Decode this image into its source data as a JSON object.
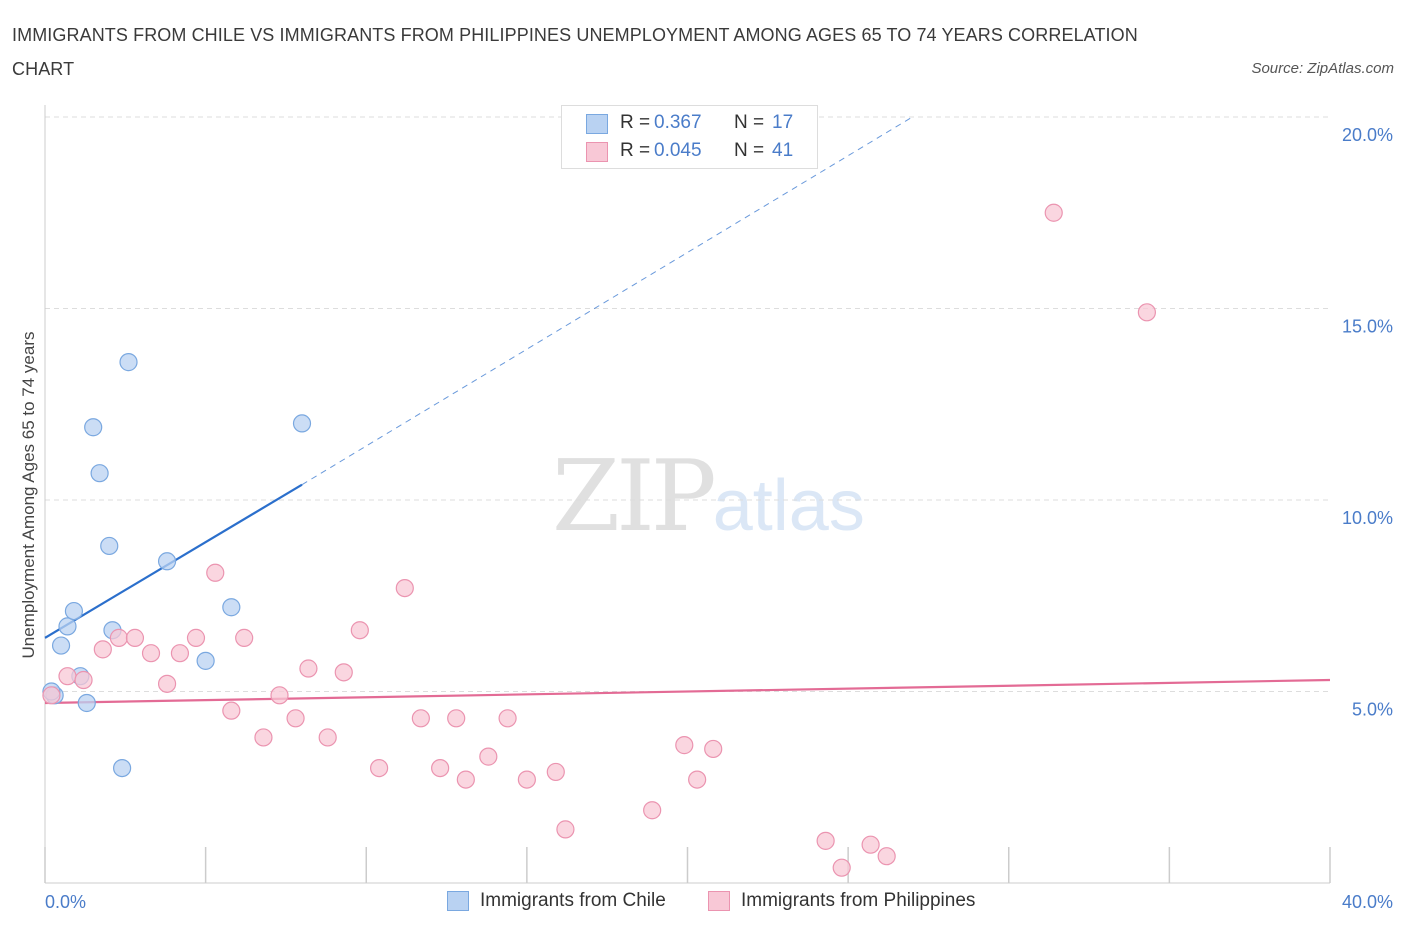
{
  "header": {
    "title": "IMMIGRANTS FROM CHILE VS IMMIGRANTS FROM PHILIPPINES UNEMPLOYMENT AMONG AGES 65 TO 74 YEARS CORRELATION CHART",
    "source": "Source: ZipAtlas.com"
  },
  "watermark": {
    "zip": "ZIP",
    "atlas": "atlas"
  },
  "legend": {
    "rows": [
      {
        "r_label": "R =",
        "r_value": "0.367",
        "n_label": "N =",
        "n_value": "17"
      },
      {
        "r_label": "R =",
        "r_value": "0.045",
        "n_label": "N =",
        "n_value": "41"
      }
    ]
  },
  "bottom_legend": {
    "chile": "Immigrants from Chile",
    "philippines": "Immigrants from Philippines"
  },
  "colors": {
    "chile_fill": "#b9d2f2",
    "chile_stroke": "#7aa8e0",
    "chile_line": "#2b6fcc",
    "phil_fill": "#f8c8d6",
    "phil_stroke": "#eb94b0",
    "phil_line": "#e36b95",
    "tick_text": "#4a7cc9",
    "grid": "#dddddd"
  },
  "chart_data": {
    "type": "scatter",
    "title": "IMMIGRANTS FROM CHILE VS IMMIGRANTS FROM PHILIPPINES UNEMPLOYMENT AMONG AGES 65 TO 74 YEARS CORRELATION CHART",
    "xlabel": "",
    "ylabel": "Unemployment Among Ages 65 to 74 years",
    "xlim": [
      0,
      40
    ],
    "ylim": [
      0,
      20
    ],
    "x_tick_labels": [
      "0.0%",
      "40.0%"
    ],
    "y_ticks": [
      5,
      10,
      15,
      20
    ],
    "y_tick_labels": [
      "5.0%",
      "10.0%",
      "15.0%",
      "20.0%"
    ],
    "grid": true,
    "legend_position": "top-center",
    "series": [
      {
        "name": "Immigrants from Chile",
        "r": 0.367,
        "n": 17,
        "trend": {
          "x0": 0,
          "y0": 6.4,
          "x1": 8.0,
          "y1": 10.4,
          "extend_to_x": 27.0,
          "extend_to_y": 20.0
        },
        "points": [
          {
            "x": 0.3,
            "y": 4.9
          },
          {
            "x": 0.5,
            "y": 6.2
          },
          {
            "x": 0.7,
            "y": 6.7
          },
          {
            "x": 0.9,
            "y": 7.1
          },
          {
            "x": 1.1,
            "y": 5.4
          },
          {
            "x": 1.3,
            "y": 4.7
          },
          {
            "x": 1.5,
            "y": 11.9
          },
          {
            "x": 1.7,
            "y": 10.7
          },
          {
            "x": 2.0,
            "y": 8.8
          },
          {
            "x": 2.1,
            "y": 6.6
          },
          {
            "x": 2.4,
            "y": 3.0
          },
          {
            "x": 2.6,
            "y": 13.6
          },
          {
            "x": 3.8,
            "y": 8.4
          },
          {
            "x": 5.0,
            "y": 5.8
          },
          {
            "x": 5.8,
            "y": 7.2
          },
          {
            "x": 8.0,
            "y": 12.0
          },
          {
            "x": 0.2,
            "y": 5.0
          }
        ]
      },
      {
        "name": "Immigrants from Philippines",
        "r": 0.045,
        "n": 41,
        "trend": {
          "x0": 0,
          "y0": 4.7,
          "x1": 40,
          "y1": 5.3
        },
        "points": [
          {
            "x": 0.2,
            "y": 4.9
          },
          {
            "x": 0.7,
            "y": 5.4
          },
          {
            "x": 1.2,
            "y": 5.3
          },
          {
            "x": 1.8,
            "y": 6.1
          },
          {
            "x": 2.3,
            "y": 6.4
          },
          {
            "x": 2.8,
            "y": 6.4
          },
          {
            "x": 3.3,
            "y": 6.0
          },
          {
            "x": 3.8,
            "y": 5.2
          },
          {
            "x": 4.2,
            "y": 6.0
          },
          {
            "x": 4.7,
            "y": 6.4
          },
          {
            "x": 5.3,
            "y": 8.1
          },
          {
            "x": 5.8,
            "y": 4.5
          },
          {
            "x": 6.2,
            "y": 6.4
          },
          {
            "x": 6.8,
            "y": 3.8
          },
          {
            "x": 7.3,
            "y": 4.9
          },
          {
            "x": 7.8,
            "y": 4.3
          },
          {
            "x": 8.2,
            "y": 5.6
          },
          {
            "x": 8.8,
            "y": 3.8
          },
          {
            "x": 9.3,
            "y": 5.5
          },
          {
            "x": 9.8,
            "y": 6.6
          },
          {
            "x": 10.4,
            "y": 3.0
          },
          {
            "x": 11.2,
            "y": 7.7
          },
          {
            "x": 11.7,
            "y": 4.3
          },
          {
            "x": 12.3,
            "y": 3.0
          },
          {
            "x": 12.8,
            "y": 4.3
          },
          {
            "x": 13.1,
            "y": 2.7
          },
          {
            "x": 13.8,
            "y": 3.3
          },
          {
            "x": 14.4,
            "y": 4.3
          },
          {
            "x": 15.0,
            "y": 2.7
          },
          {
            "x": 15.9,
            "y": 2.9
          },
          {
            "x": 16.2,
            "y": 1.4
          },
          {
            "x": 18.9,
            "y": 1.9
          },
          {
            "x": 19.9,
            "y": 3.6
          },
          {
            "x": 20.3,
            "y": 2.7
          },
          {
            "x": 20.8,
            "y": 3.5
          },
          {
            "x": 24.3,
            "y": 1.1
          },
          {
            "x": 24.8,
            "y": 0.4
          },
          {
            "x": 25.7,
            "y": 1.0
          },
          {
            "x": 26.2,
            "y": 0.7
          },
          {
            "x": 31.4,
            "y": 17.5
          },
          {
            "x": 34.3,
            "y": 14.9
          }
        ]
      }
    ]
  }
}
